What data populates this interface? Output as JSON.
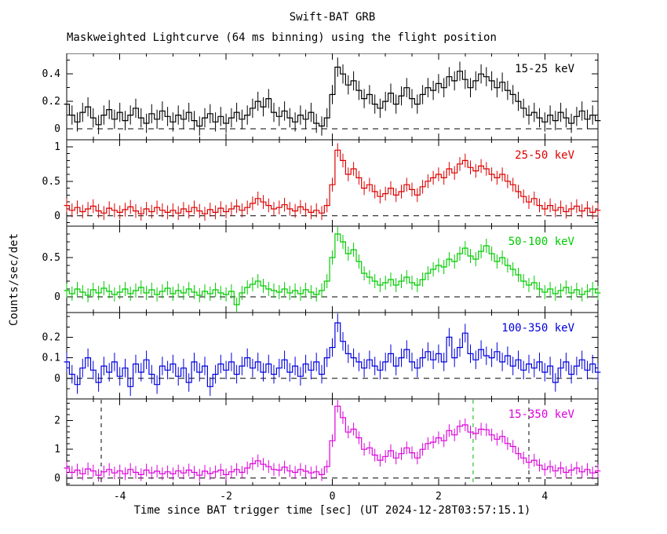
{
  "title": "Swift-BAT GRB",
  "subtitle": "Maskweighted Lightcurve (64 ms binning) using the flight position",
  "ylabel": "Counts/sec/det",
  "xlabel": "Time since BAT trigger time [sec] (UT 2024-12-28T03:57:15.1)",
  "chart_data": {
    "type": "line",
    "style": "histogram-step-with-errorbars",
    "x_axis": {
      "min": -5,
      "max": 5,
      "x_start": -5.0,
      "x_step": 0.1,
      "tick_values": [
        -4,
        -2,
        0,
        2,
        4
      ],
      "tick_labels": [
        "-4",
        "-2",
        "0",
        "2",
        "4"
      ],
      "minor_step": 0.5
    },
    "panels": [
      {
        "name": "15-25 keV",
        "color": "#000000",
        "ymin": -0.08,
        "ymax": 0.55,
        "yticks": [
          0,
          0.2,
          0.4
        ],
        "ytick_labels": [
          "0",
          "0.2",
          "0.4"
        ],
        "yminor_step": 0.1,
        "err": 0.07,
        "markers": [],
        "values": [
          0.18,
          0.1,
          0.05,
          0.12,
          0.16,
          0.08,
          0.03,
          0.1,
          0.14,
          0.07,
          0.12,
          0.06,
          0.1,
          0.15,
          0.08,
          0.04,
          0.11,
          0.07,
          0.13,
          0.09,
          0.05,
          0.1,
          0.07,
          0.12,
          0.06,
          0.02,
          0.08,
          0.11,
          0.05,
          0.09,
          0.04,
          0.08,
          0.12,
          0.07,
          0.1,
          0.15,
          0.2,
          0.16,
          0.22,
          0.12,
          0.09,
          0.13,
          0.08,
          0.05,
          0.1,
          0.07,
          0.12,
          0.04,
          0.02,
          0.08,
          0.25,
          0.45,
          0.4,
          0.32,
          0.35,
          0.28,
          0.22,
          0.25,
          0.18,
          0.15,
          0.2,
          0.26,
          0.18,
          0.24,
          0.3,
          0.22,
          0.18,
          0.25,
          0.3,
          0.28,
          0.33,
          0.3,
          0.38,
          0.35,
          0.42,
          0.36,
          0.3,
          0.35,
          0.4,
          0.38,
          0.35,
          0.3,
          0.34,
          0.28,
          0.25,
          0.2,
          0.15,
          0.1,
          0.12,
          0.08,
          0.05,
          0.1,
          0.06,
          0.12,
          0.08,
          0.04,
          0.09,
          0.13,
          0.07,
          0.1,
          0.06
        ]
      },
      {
        "name": "25-50 keV",
        "color": "#dd0000",
        "ymin": -0.15,
        "ymax": 1.1,
        "yticks": [
          0,
          0.5,
          1
        ],
        "ytick_labels": [
          "0",
          "0.5",
          "1"
        ],
        "yminor_step": 0.1,
        "err": 0.1,
        "markers": [],
        "values": [
          0.15,
          0.08,
          0.12,
          0.06,
          0.1,
          0.14,
          0.07,
          0.04,
          0.11,
          0.08,
          0.05,
          0.09,
          0.13,
          0.07,
          0.03,
          0.1,
          0.06,
          0.12,
          0.08,
          0.05,
          0.08,
          0.04,
          0.1,
          0.06,
          0.12,
          0.07,
          0.03,
          0.09,
          0.05,
          0.11,
          0.06,
          0.1,
          0.14,
          0.08,
          0.12,
          0.18,
          0.25,
          0.2,
          0.15,
          0.1,
          0.12,
          0.16,
          0.1,
          0.07,
          0.13,
          0.09,
          0.05,
          0.08,
          0.04,
          0.15,
          0.45,
          0.95,
          0.8,
          0.6,
          0.68,
          0.55,
          0.4,
          0.45,
          0.35,
          0.28,
          0.32,
          0.4,
          0.3,
          0.35,
          0.45,
          0.38,
          0.3,
          0.42,
          0.5,
          0.55,
          0.6,
          0.55,
          0.68,
          0.62,
          0.75,
          0.8,
          0.7,
          0.65,
          0.72,
          0.68,
          0.6,
          0.55,
          0.6,
          0.5,
          0.45,
          0.35,
          0.28,
          0.2,
          0.25,
          0.15,
          0.1,
          0.15,
          0.08,
          0.12,
          0.06,
          0.1,
          0.14,
          0.07,
          0.11,
          0.05,
          0.08
        ]
      },
      {
        "name": "50-100 keV",
        "color": "#00cc00",
        "ymin": -0.2,
        "ymax": 0.9,
        "yticks": [
          0,
          0.5
        ],
        "ytick_labels": [
          "0",
          "0.5"
        ],
        "yminor_step": 0.1,
        "err": 0.09,
        "markers": [],
        "values": [
          0.08,
          0.04,
          0.1,
          0.06,
          0.02,
          0.09,
          0.05,
          0.11,
          0.07,
          0.03,
          0.06,
          0.1,
          0.04,
          0.08,
          0.12,
          0.05,
          0.09,
          0.03,
          0.07,
          0.11,
          0.04,
          0.08,
          0.05,
          0.1,
          0.06,
          0.02,
          0.07,
          0.04,
          0.09,
          0.05,
          0.03,
          0.07,
          -0.1,
          0.05,
          0.12,
          0.16,
          0.2,
          0.14,
          0.1,
          0.08,
          0.06,
          0.1,
          0.05,
          0.08,
          0.04,
          0.09,
          0.06,
          0.03,
          0.08,
          0.2,
          0.5,
          0.8,
          0.7,
          0.55,
          0.6,
          0.45,
          0.3,
          0.25,
          0.2,
          0.15,
          0.18,
          0.22,
          0.15,
          0.2,
          0.25,
          0.18,
          0.15,
          0.22,
          0.3,
          0.35,
          0.4,
          0.38,
          0.48,
          0.45,
          0.55,
          0.62,
          0.52,
          0.48,
          0.58,
          0.65,
          0.55,
          0.45,
          0.5,
          0.4,
          0.35,
          0.28,
          0.2,
          0.15,
          0.18,
          0.1,
          0.06,
          0.1,
          0.04,
          0.08,
          0.12,
          0.05,
          0.09,
          0.03,
          0.07,
          0.1,
          0.05
        ]
      },
      {
        "name": "100-350 keV",
        "color": "#0000dd",
        "ymin": -0.1,
        "ymax": 0.32,
        "yticks": [
          0,
          0.1,
          0.2
        ],
        "ytick_labels": [
          "0",
          "0.1",
          "0.2"
        ],
        "yminor_step": 0.05,
        "err": 0.045,
        "markers": [],
        "values": [
          0.08,
          0.02,
          -0.03,
          0.05,
          0.1,
          0.04,
          -0.02,
          0.06,
          0.03,
          0.08,
          0.01,
          0.05,
          -0.04,
          0.07,
          0.03,
          0.09,
          0.02,
          -0.03,
          0.06,
          0.04,
          0.07,
          0.01,
          0.05,
          -0.02,
          0.08,
          0.03,
          0.06,
          -0.04,
          0.02,
          0.07,
          0.04,
          0.08,
          0.02,
          0.06,
          0.1,
          0.05,
          0.08,
          0.03,
          0.07,
          0.02,
          0.05,
          0.09,
          0.03,
          0.06,
          0.01,
          0.07,
          0.04,
          0.08,
          0.02,
          0.1,
          0.15,
          0.27,
          0.18,
          0.12,
          0.1,
          0.08,
          0.05,
          0.09,
          0.06,
          0.04,
          0.08,
          0.12,
          0.06,
          0.1,
          0.14,
          0.08,
          0.05,
          0.1,
          0.13,
          0.09,
          0.12,
          0.08,
          0.2,
          0.1,
          0.15,
          0.22,
          0.12,
          0.09,
          0.14,
          0.11,
          0.1,
          0.13,
          0.08,
          0.11,
          0.06,
          0.09,
          0.04,
          0.07,
          0.05,
          0.08,
          0.03,
          0.06,
          -0.02,
          0.05,
          0.08,
          0.02,
          0.06,
          0.09,
          0.04,
          0.07,
          0.03
        ]
      },
      {
        "name": "15-350 keV",
        "color": "#dd00dd",
        "ymin": -0.25,
        "ymax": 2.75,
        "yticks": [
          0,
          1,
          2
        ],
        "ytick_labels": [
          "0",
          "1",
          "2"
        ],
        "yminor_step": 0.2,
        "err": 0.22,
        "markers": [
          {
            "x": -4.35,
            "color": "#000000"
          },
          {
            "x": 2.65,
            "color": "#00bb00"
          },
          {
            "x": 3.7,
            "color": "#000000"
          }
        ],
        "values": [
          0.35,
          0.2,
          0.28,
          0.15,
          0.32,
          0.25,
          0.1,
          0.22,
          0.3,
          0.18,
          0.25,
          0.15,
          0.3,
          0.2,
          0.12,
          0.28,
          0.18,
          0.24,
          0.15,
          0.22,
          0.15,
          0.25,
          0.18,
          0.28,
          0.2,
          0.1,
          0.24,
          0.16,
          0.22,
          0.28,
          0.12,
          0.22,
          0.3,
          0.2,
          0.35,
          0.5,
          0.6,
          0.48,
          0.4,
          0.3,
          0.28,
          0.38,
          0.25,
          0.2,
          0.3,
          0.24,
          0.18,
          0.22,
          0.12,
          0.4,
          1.3,
          2.5,
          2.1,
          1.6,
          1.7,
          1.4,
          1.0,
          1.05,
          0.8,
          0.62,
          0.75,
          0.95,
          0.7,
          0.85,
          1.05,
          0.88,
          0.7,
          1.0,
          1.2,
          1.25,
          1.4,
          1.3,
          1.65,
          1.5,
          1.8,
          1.85,
          1.6,
          1.55,
          1.7,
          1.68,
          1.5,
          1.35,
          1.45,
          1.2,
          1.1,
          0.85,
          0.7,
          0.55,
          0.62,
          0.45,
          0.3,
          0.4,
          0.25,
          0.35,
          0.2,
          0.28,
          0.35,
          0.22,
          0.3,
          0.18,
          0.25
        ]
      }
    ]
  }
}
